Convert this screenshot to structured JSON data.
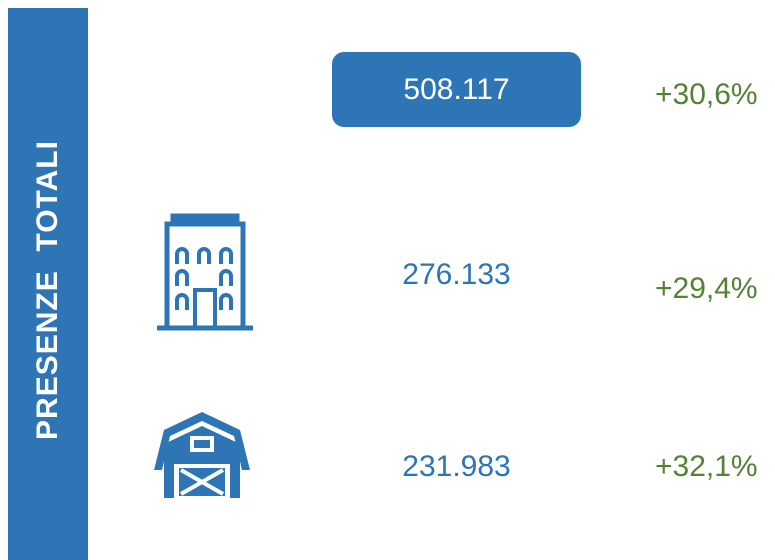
{
  "side_label": "PRESENZE  TOTALI",
  "rows": [
    {
      "value": "508.117",
      "change": "+30,6%"
    },
    {
      "value": "276.133",
      "change": "+29,4%"
    },
    {
      "value": "231.983",
      "change": "+32,1%"
    }
  ]
}
